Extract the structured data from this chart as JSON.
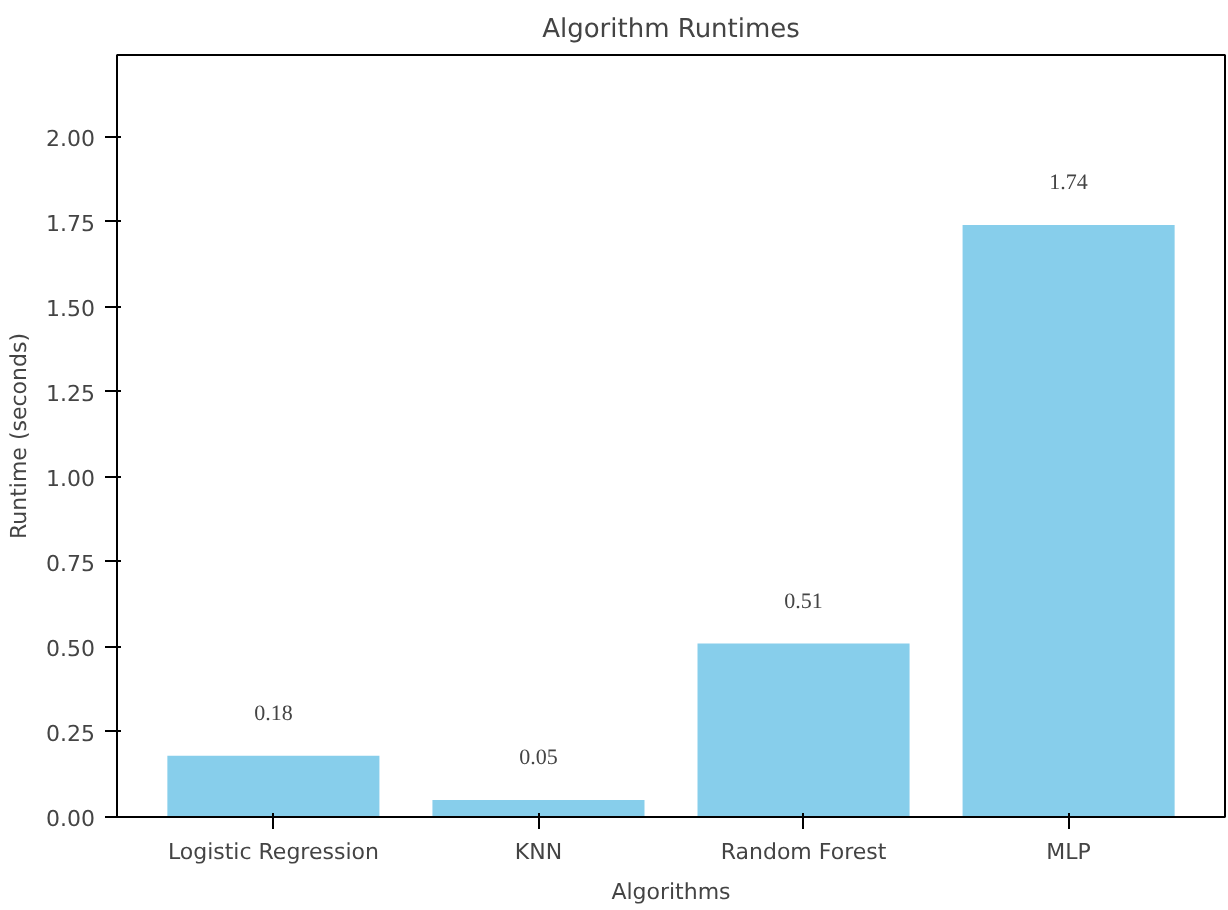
{
  "chart_data": {
    "type": "bar",
    "title": "Algorithm Runtimes",
    "xlabel": "Algorithms",
    "ylabel": "Runtime (seconds)",
    "categories": [
      "Logistic Regression",
      "KNN",
      "Random Forest",
      "MLP"
    ],
    "values": [
      0.18,
      0.05,
      0.51,
      1.74
    ],
    "color": "#87ceeb",
    "ylim": [
      0,
      2.24
    ],
    "yticks": [
      {
        "value": 0,
        "label": "0.00"
      },
      {
        "value": 0.25,
        "label": "0.25"
      },
      {
        "value": 0.5,
        "label": "0.50"
      },
      {
        "value": 0.75,
        "label": "0.75"
      },
      {
        "value": 1,
        "label": "1.00"
      },
      {
        "value": 1.25,
        "label": "1.25"
      },
      {
        "value": 1.5,
        "label": "1.50"
      },
      {
        "value": 1.75,
        "label": "1.75"
      },
      {
        "value": 2,
        "label": "2.00"
      }
    ],
    "data_labels": true,
    "grid": false
  }
}
